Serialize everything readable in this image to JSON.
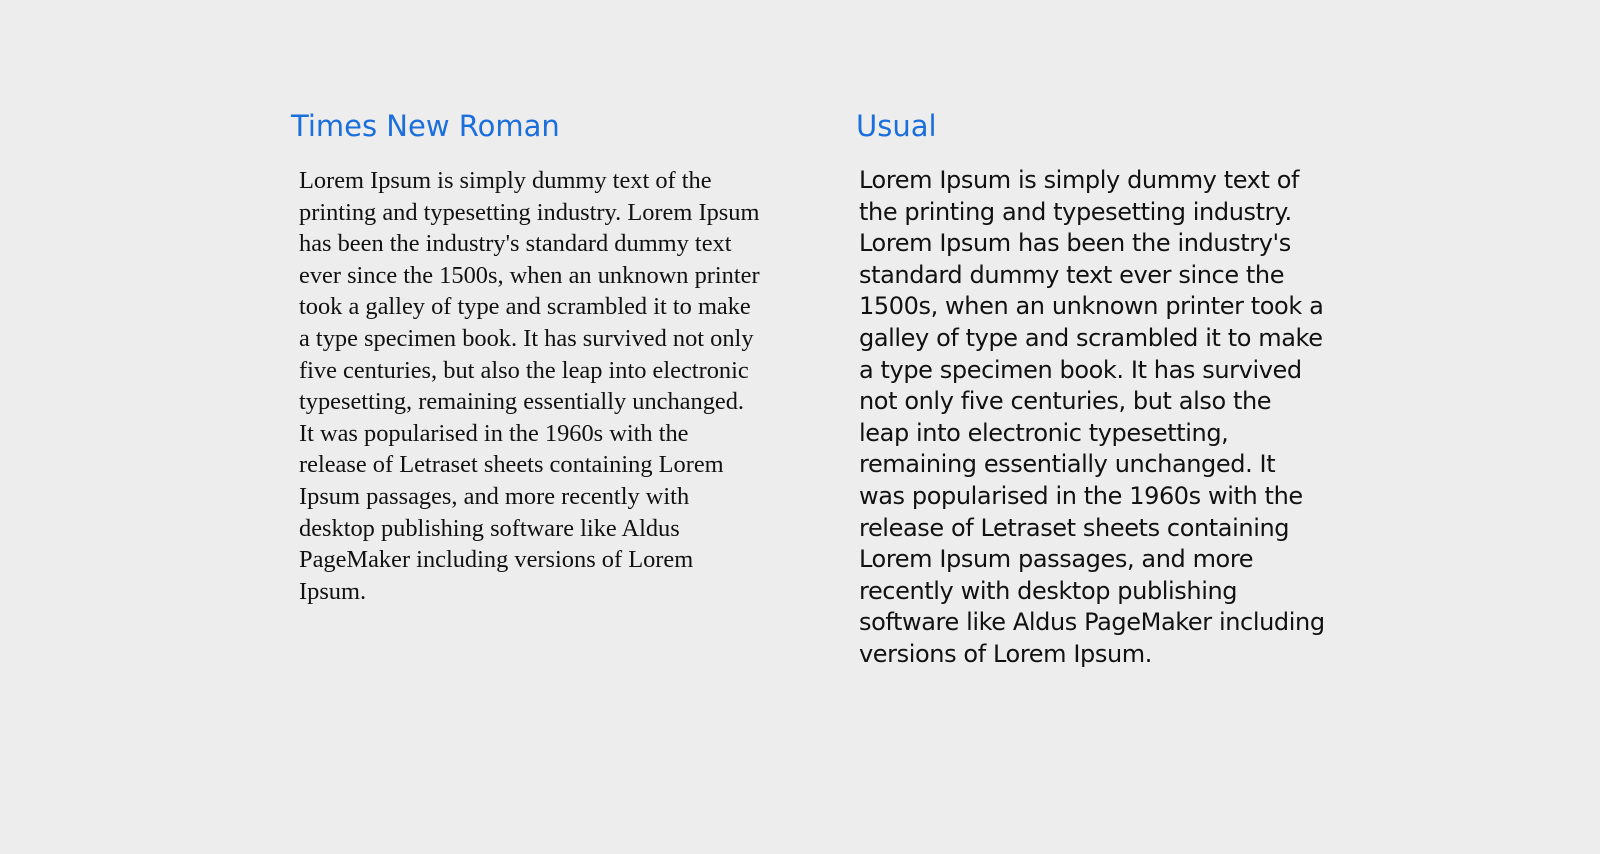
{
  "columns": {
    "serif": {
      "title": "Times New Roman",
      "body": "Lorem Ipsum is simply dummy text of the printing and typesetting industry. Lorem Ipsum has been the industry's standard dummy text ever since the 1500s, when an unknown printer took a galley of type and scrambled it to make a type specimen book. It has survived not only five centuries, but also the leap into electronic typesetting, remaining essentially unchanged. It was popularised in the 1960s with the release of Letraset sheets containing Lorem Ipsum passages, and more recently with desktop publishing software like Aldus PageMaker including versions of Lorem Ipsum."
    },
    "usual": {
      "title": "Usual",
      "body": "Lorem Ipsum is simply dummy text of the printing and typesetting industry. Lorem Ipsum has been the industry's standard dummy text ever since the 1500s, when an unknown printer took a galley of type and scrambled it to make a type specimen book. It has survived not only five centuries, but also the leap into electronic typesetting, remaining essentially unchanged. It was popularised in the 1960s with the release of Letraset sheets containing Lorem Ipsum passages, and more recently with desktop publishing software like Aldus PageMaker including versions of Lorem Ipsum."
    }
  },
  "colors": {
    "background": "#ededed",
    "title": "#1a6fdc",
    "body_text": "#111111"
  }
}
